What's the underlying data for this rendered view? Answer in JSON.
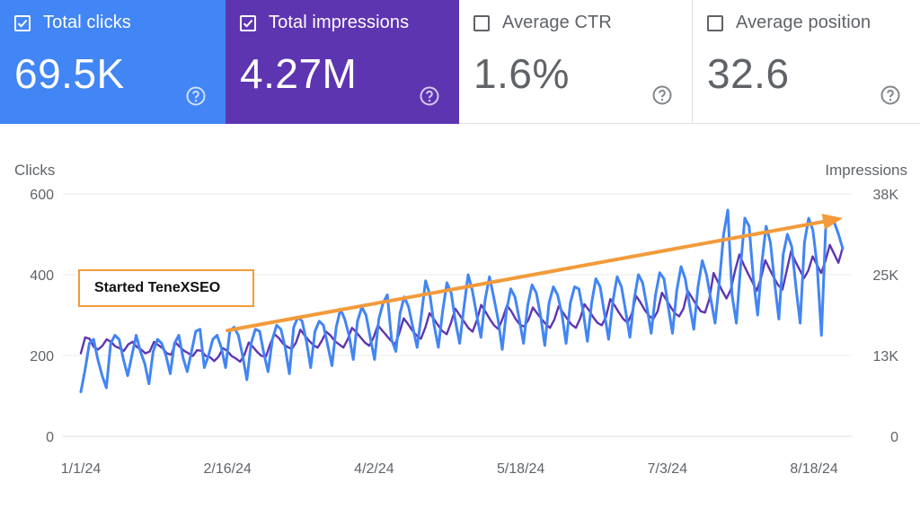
{
  "cards": [
    {
      "label": "Total clicks",
      "value": "69.5K",
      "checked": true,
      "bg": "#4285f4"
    },
    {
      "label": "Total impressions",
      "value": "4.27M",
      "checked": true,
      "bg": "#5e35b1"
    },
    {
      "label": "Average CTR",
      "value": "1.6%",
      "checked": false
    },
    {
      "label": "Average position",
      "value": "32.6",
      "checked": false
    }
  ],
  "icons": {
    "checkbox": "checkbox-icon",
    "help": "help-circle-icon",
    "trend_arrow": "arrow-right-icon"
  },
  "annotation": "Started TeneXSEO",
  "chart_data": {
    "type": "line",
    "title": "",
    "y_left_label": "Clicks",
    "y_right_label": "Impressions",
    "y_left_ticks": [
      "0",
      "200",
      "400",
      "600"
    ],
    "y_right_ticks": [
      "0",
      "13K",
      "25K",
      "38K"
    ],
    "y_left_range": [
      0,
      600
    ],
    "y_right_range": [
      0,
      38000
    ],
    "x_ticks": [
      "1/1/24",
      "2/16/24",
      "4/2/24",
      "5/18/24",
      "7/3/24",
      "8/18/24"
    ],
    "x_range": [
      "1/1/24",
      "8/27/24"
    ],
    "grid": true,
    "colors": {
      "clicks": "#4285f4",
      "impressions": "#5e35b1",
      "trend": "#f39a3a"
    },
    "trend": {
      "from": {
        "x": "2/16/24",
        "clicks": 262
      },
      "to": {
        "x": "8/27/24",
        "clicks": 540
      }
    },
    "series": [
      {
        "name": "Clicks",
        "axis": "left",
        "values": [
          110,
          165,
          230,
          240,
          190,
          150,
          120,
          230,
          250,
          240,
          190,
          150,
          200,
          250,
          210,
          180,
          130,
          210,
          240,
          230,
          200,
          155,
          230,
          250,
          195,
          160,
          210,
          260,
          265,
          170,
          200,
          240,
          250,
          220,
          170,
          260,
          270,
          250,
          200,
          140,
          230,
          265,
          260,
          205,
          160,
          240,
          275,
          265,
          220,
          155,
          270,
          295,
          285,
          235,
          170,
          260,
          285,
          275,
          225,
          175,
          270,
          315,
          290,
          250,
          190,
          285,
          320,
          300,
          245,
          190,
          290,
          330,
          350,
          240,
          210,
          305,
          345,
          320,
          270,
          220,
          300,
          385,
          350,
          275,
          220,
          310,
          380,
          355,
          285,
          230,
          320,
          400,
          360,
          300,
          245,
          340,
          395,
          345,
          290,
          215,
          310,
          365,
          345,
          290,
          230,
          325,
          375,
          355,
          300,
          225,
          330,
          370,
          350,
          305,
          230,
          330,
          370,
          365,
          310,
          235,
          330,
          390,
          370,
          305,
          240,
          335,
          395,
          370,
          310,
          245,
          340,
          400,
          380,
          320,
          255,
          350,
          405,
          390,
          320,
          255,
          360,
          420,
          390,
          325,
          265,
          370,
          435,
          400,
          340,
          280,
          380,
          500,
          560,
          350,
          280,
          420,
          540,
          520,
          390,
          300,
          430,
          520,
          480,
          380,
          290,
          450,
          500,
          470,
          370,
          280,
          480,
          540,
          510,
          420,
          250,
          520,
          540,
          530,
          500,
          465
        ]
      },
      {
        "name": "Impressions",
        "axis": "right",
        "values": [
          13000,
          15500,
          15300,
          14000,
          13600,
          14200,
          15200,
          14800,
          14100,
          13800,
          13400,
          14400,
          14800,
          14000,
          13600,
          13000,
          13300,
          14800,
          14300,
          13800,
          13000,
          12800,
          14700,
          14000,
          13400,
          13000,
          12600,
          13500,
          13400,
          12600,
          12400,
          11800,
          12500,
          13800,
          13400,
          12600,
          12200,
          11700,
          12800,
          14700,
          14000,
          13200,
          12600,
          12500,
          14500,
          16000,
          15400,
          14500,
          14000,
          13700,
          14700,
          16700,
          15800,
          15000,
          14300,
          13900,
          15000,
          16400,
          15800,
          14900,
          14400,
          13900,
          15200,
          17000,
          16300,
          15500,
          14700,
          14200,
          15500,
          17400,
          16600,
          15800,
          15000,
          14400,
          16200,
          18500,
          17600,
          16600,
          15800,
          15300,
          17000,
          19300,
          18400,
          17400,
          16500,
          16000,
          17800,
          20000,
          19000,
          18000,
          17000,
          16400,
          18200,
          20600,
          19500,
          18400,
          17400,
          16800,
          18500,
          20500,
          19600,
          18400,
          17500,
          17200,
          18300,
          20200,
          19300,
          18400,
          17600,
          17000,
          18300,
          20400,
          19400,
          18400,
          17500,
          17000,
          18500,
          20700,
          19800,
          18700,
          17800,
          17400,
          18700,
          21500,
          20500,
          19400,
          18400,
          17800,
          19200,
          22000,
          21000,
          19800,
          18900,
          18400,
          19600,
          22500,
          21400,
          20300,
          19300,
          18800,
          20000,
          22800,
          21700,
          20600,
          19600,
          19400,
          21500,
          25600,
          24200,
          22800,
          21600,
          23000,
          26000,
          28500,
          26900,
          25500,
          24200,
          22800,
          24800,
          27600,
          26200,
          24900,
          23700,
          23000,
          26000,
          29000,
          27400,
          26100,
          24800,
          26000,
          28200,
          26900,
          25600,
          27500,
          30000,
          28600,
          27200,
          29600
        ]
      }
    ]
  }
}
